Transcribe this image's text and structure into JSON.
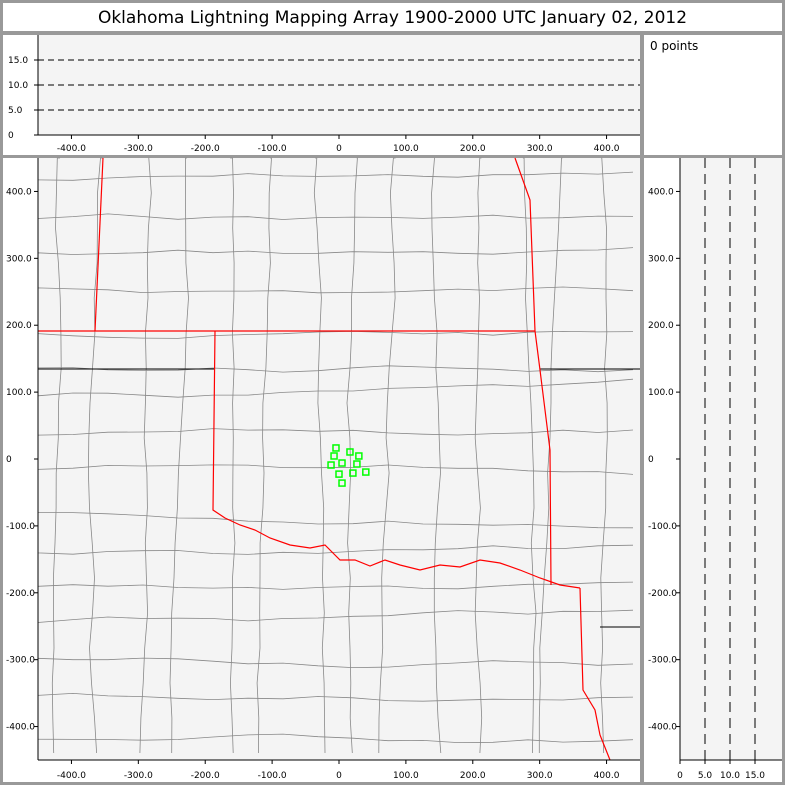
{
  "title": "Oklahoma Lightning Mapping Array   1900-2000 UTC  January 02, 2012",
  "points_label": "0 points",
  "colors": {
    "background": "#f4f4f4",
    "border": "#999999",
    "state_line": "#ff0000",
    "county_line": "#888888",
    "source": "#00ff00"
  },
  "chart_data": [
    {
      "type": "line",
      "name": "altitude-vs-east",
      "xlim": [
        -450,
        450
      ],
      "ylim": [
        0,
        20
      ],
      "xticks": [
        "-400.0",
        "-300.0",
        "-200.0",
        "-100.0",
        "0",
        "100.0",
        "200.0",
        "300.0",
        "400.0"
      ],
      "yticks": [
        "0",
        "5.0",
        "10.0",
        "15.0"
      ],
      "grid": "dashed-horizontal",
      "points": []
    },
    {
      "type": "scatter",
      "name": "plan-view",
      "xlim": [
        -450,
        450
      ],
      "ylim": [
        -450,
        450
      ],
      "xticks": [
        "-400.0",
        "-300.0",
        "-200.0",
        "-100.0",
        "0",
        "100.0",
        "200.0",
        "300.0",
        "400.0"
      ],
      "yticks": [
        "400.0",
        "300.0",
        "200.0",
        "100.0",
        "0",
        "-100.0",
        "-200.0",
        "-300.0",
        "-400.0"
      ],
      "marker": "hollow-square",
      "color": "#00ff00",
      "points": [
        [
          -4.5,
          16.5
        ],
        [
          -7.4,
          4.5
        ],
        [
          16.4,
          10.5
        ],
        [
          29.7,
          4.5
        ],
        [
          -11.9,
          -9
        ],
        [
          4.5,
          -6
        ],
        [
          26.8,
          -7.5
        ],
        [
          0,
          -22.6
        ],
        [
          20.8,
          -21
        ],
        [
          40.1,
          -19.5
        ],
        [
          4.5,
          -36
        ]
      ]
    },
    {
      "type": "line",
      "name": "north-vs-altitude",
      "xlim": [
        0,
        20
      ],
      "ylim": [
        -450,
        450
      ],
      "xticks": [
        "0",
        "5.0",
        "10.0",
        "15.0"
      ],
      "yticks": [
        "400.0",
        "300.0",
        "200.0",
        "100.0",
        "0",
        "-100.0",
        "-200.0",
        "-300.0",
        "-400.0"
      ],
      "grid": "dashed-vertical",
      "points": []
    }
  ]
}
